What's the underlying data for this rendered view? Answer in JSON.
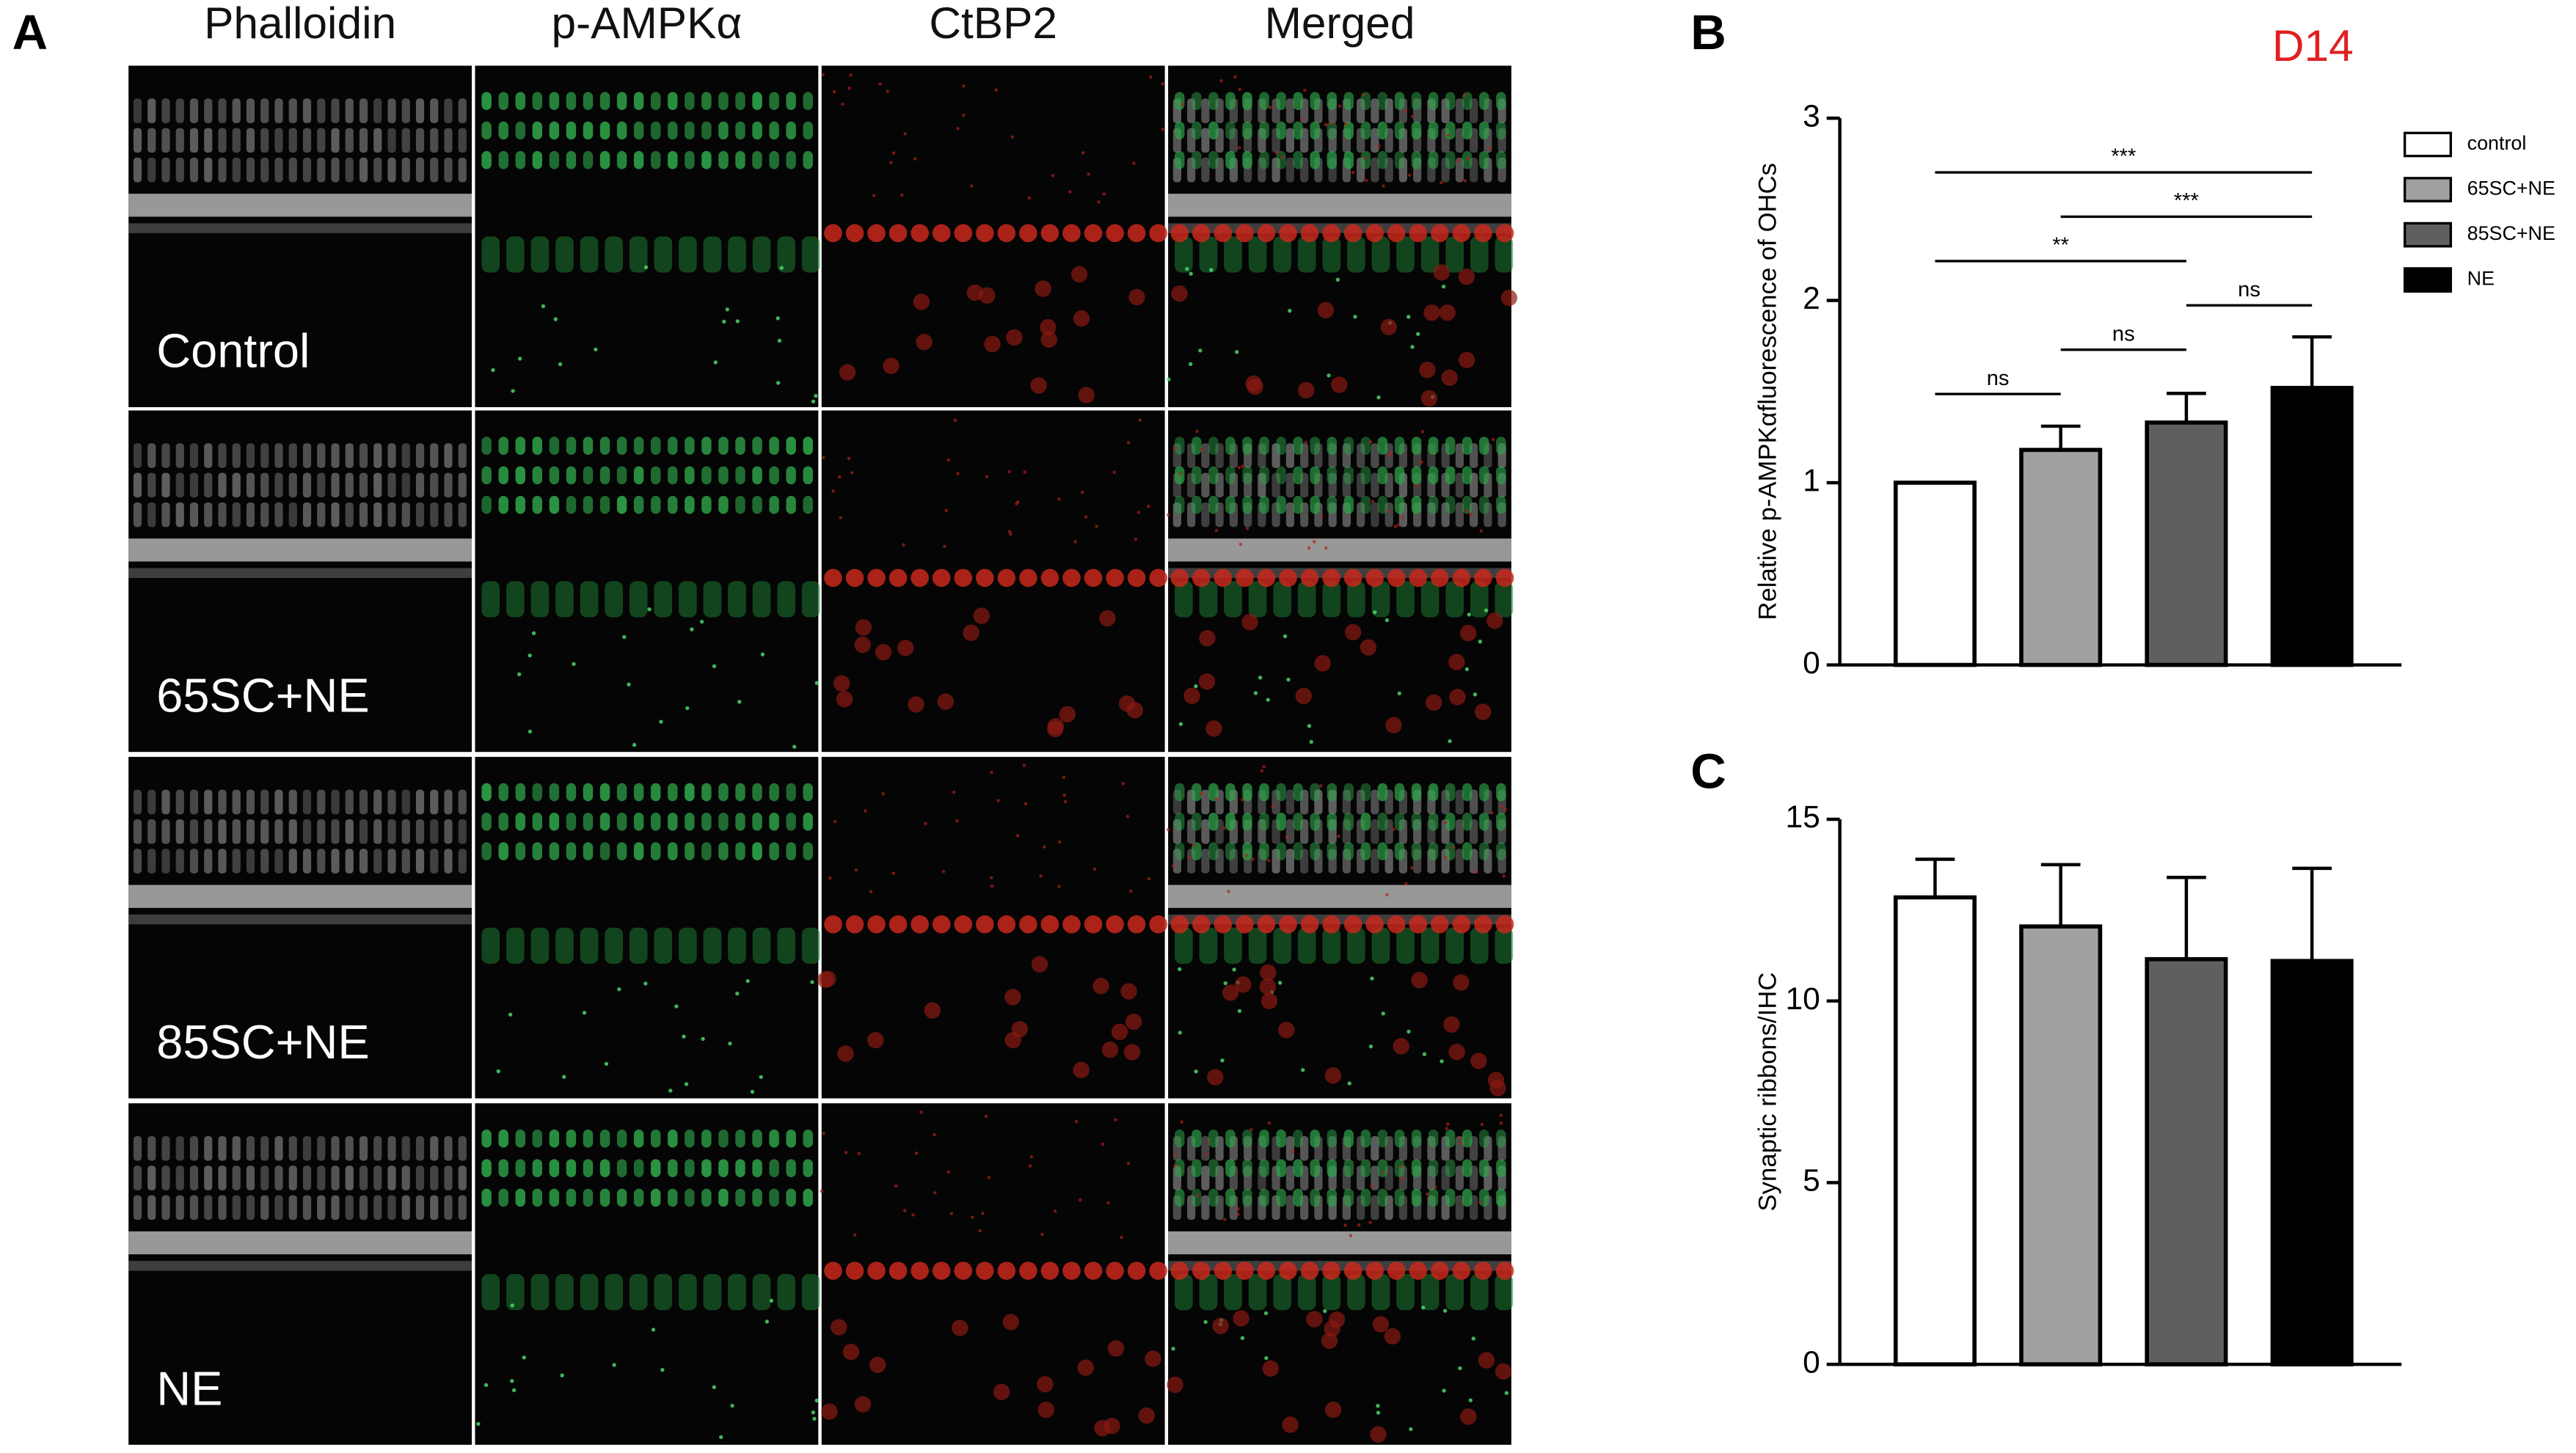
{
  "panel_labels": {
    "a": "A",
    "b": "B",
    "c": "C"
  },
  "panel_a": {
    "columns": [
      "Phalloidin",
      "p-AMPKα",
      "CtBP2",
      "Merged"
    ],
    "rows": [
      "Control",
      "65SC+NE",
      "85SC+NE",
      "NE"
    ]
  },
  "chart_data": [
    {
      "type": "bar",
      "title": "D14",
      "y_label": "Relative p-AMPKαfluorescence of OHCs",
      "categories": [
        "control",
        "65SC+NE",
        "85SC+NE",
        "NE"
      ],
      "values": [
        1.0,
        1.18,
        1.33,
        1.52
      ],
      "errors": [
        0,
        0.13,
        0.16,
        0.28
      ],
      "colors": [
        "#ffffff",
        "#a0a0a3",
        "#5f5f5f",
        "#000000"
      ],
      "ylim": [
        0,
        3
      ],
      "yticks": [
        0,
        1,
        2,
        3
      ],
      "legend": true,
      "annotations": [
        {
          "label": "ns",
          "between": [
            "control",
            "65SC+NE"
          ]
        },
        {
          "label": "ns",
          "between": [
            "65SC+NE",
            "85SC+NE"
          ]
        },
        {
          "label": "ns",
          "between": [
            "85SC+NE",
            "NE"
          ]
        },
        {
          "label": "**",
          "between": [
            "control",
            "85SC+NE"
          ]
        },
        {
          "label": "***",
          "between": [
            "65SC+NE",
            "NE"
          ]
        },
        {
          "label": "***",
          "between": [
            "control",
            "NE"
          ]
        }
      ]
    },
    {
      "type": "bar",
      "y_label": "Synaptic ribbons/IHC",
      "categories": [
        null,
        null,
        null,
        null
      ],
      "values": [
        12.85,
        12.05,
        11.15,
        11.1
      ],
      "errors": [
        1.05,
        1.7,
        2.25,
        2.55
      ],
      "colors": [
        "#ffffff",
        "#a0a0a3",
        "#5f5f5f",
        "#000000"
      ],
      "ylim": [
        0,
        15
      ],
      "yticks": [
        0,
        5,
        10,
        15
      ],
      "legend": false
    }
  ]
}
